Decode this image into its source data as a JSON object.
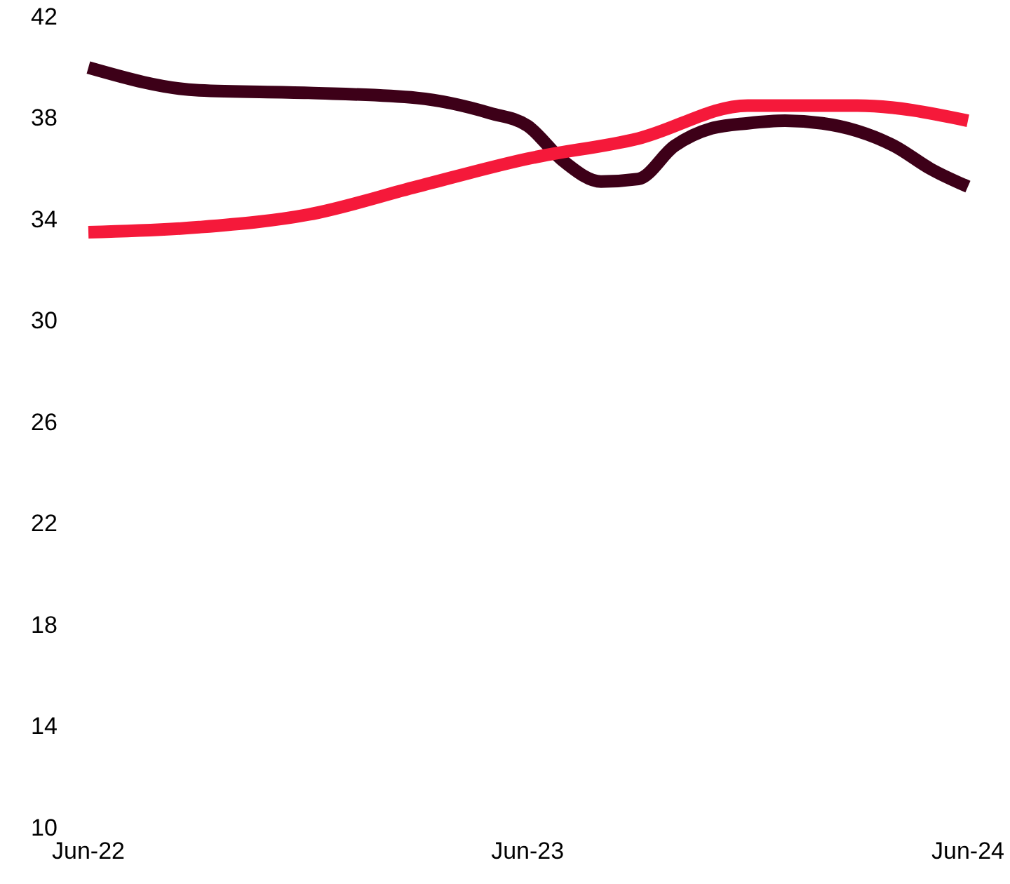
{
  "chart_data": {
    "type": "line",
    "x": [
      "2022-06",
      "2022-09",
      "2022-12",
      "2023-03",
      "2023-05",
      "2023-06",
      "2023-07",
      "2023-08",
      "2023-09",
      "2023-10",
      "2023-11",
      "2023-12",
      "2024-01",
      "2024-02",
      "2024-03",
      "2024-04",
      "2024-05",
      "2024-06"
    ],
    "series": [
      {
        "color": "#3d0018",
        "values": [
          40.0,
          39.1,
          39.0,
          38.8,
          38.2,
          37.7,
          36.3,
          35.5,
          35.6,
          36.9,
          37.6,
          37.8,
          37.9,
          37.8,
          37.5,
          36.9,
          36.0,
          35.3
        ]
      },
      {
        "color": "#f5193a",
        "values": [
          33.5,
          33.7,
          34.2,
          35.3,
          null,
          36.4,
          null,
          null,
          37.2,
          null,
          null,
          38.5,
          null,
          null,
          38.5,
          null,
          null,
          37.9
        ]
      }
    ],
    "xlim": [
      "2022-06",
      "2024-06"
    ],
    "xticks": [
      {
        "value": "2022-06",
        "label": "Jun-22"
      },
      {
        "value": "2023-06",
        "label": "Jun-23"
      },
      {
        "value": "2024-06",
        "label": "Jun-24"
      }
    ],
    "ylim": [
      10,
      42
    ],
    "yticks": [
      10,
      14,
      18,
      22,
      26,
      30,
      34,
      38,
      42
    ],
    "grid": false,
    "marker": "none",
    "line_style": "solid"
  }
}
